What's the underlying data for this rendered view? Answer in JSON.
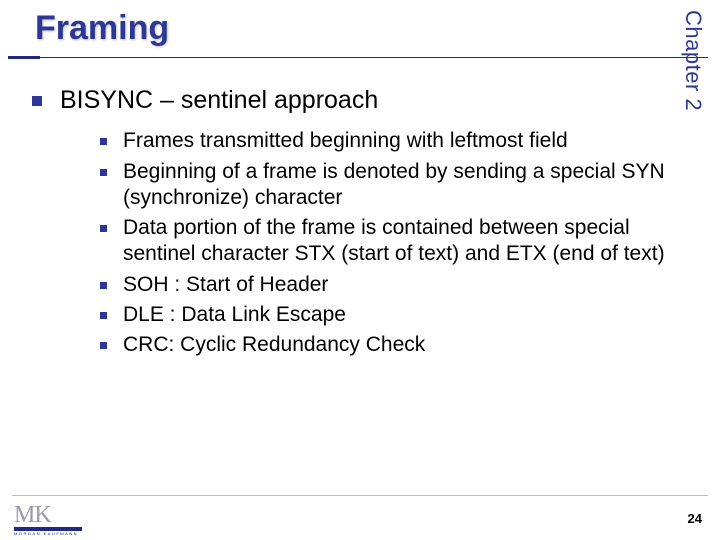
{
  "title": "Framing",
  "chapter_label": "Chapter 2",
  "heading": "BISYNC – sentinel approach",
  "bullets": [
    "Frames transmitted beginning with leftmost field",
    "Beginning of a frame is denoted by sending a special SYN (synchronize) character",
    "Data portion of the frame is contained between special sentinel character STX (start of text) and ETX (end of text)",
    "SOH : Start of Header",
    "DLE : Data Link Escape",
    "CRC: Cyclic Redundancy Check"
  ],
  "logo": {
    "mk": "MK",
    "sub": "MORGAN KAUFMANN"
  },
  "page_number": "24",
  "colors": {
    "accent": "#2d3795",
    "text": "#000000",
    "logo_grey": "#9a9aa8"
  }
}
